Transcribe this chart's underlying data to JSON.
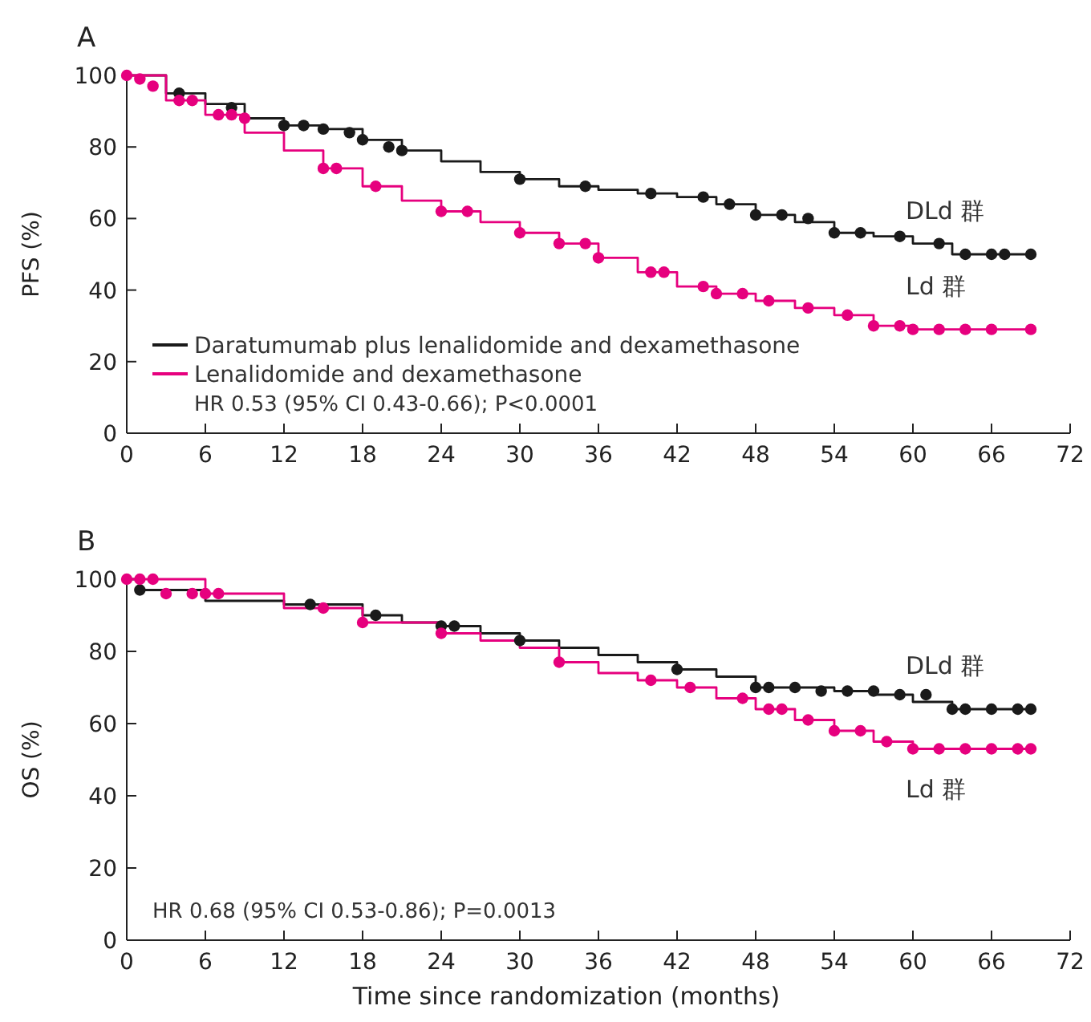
{
  "chart_data": [
    {
      "type": "step",
      "title": "A",
      "ylabel": "PFS (%)",
      "xlim": [
        0,
        72
      ],
      "xticks": [
        0,
        6,
        12,
        18,
        24,
        30,
        36,
        42,
        48,
        54,
        60,
        66,
        72
      ],
      "ylim": [
        0,
        100
      ],
      "yticks": [
        0,
        20,
        40,
        60,
        80,
        100
      ],
      "grid": false,
      "legend": "bottom left",
      "series": [
        {
          "name": "Daratumumab plus lenalidomide and dexamethasone",
          "color": "#1a1a1a",
          "x": [
            0,
            3,
            6,
            9,
            12,
            15,
            18,
            21,
            24,
            27,
            30,
            33,
            36,
            39,
            42,
            45,
            48,
            51,
            54,
            57,
            60,
            63,
            69
          ],
          "values": [
            100,
            95,
            92,
            88,
            86,
            85,
            82,
            79,
            76,
            73,
            71,
            69,
            68,
            67,
            66,
            64,
            61,
            59,
            56,
            55,
            53,
            50,
            50
          ]
        },
        {
          "name": "Lenalidomide and dexamethasone",
          "color": "#e6007e",
          "x": [
            0,
            3,
            6,
            9,
            12,
            15,
            18,
            21,
            24,
            27,
            30,
            33,
            36,
            39,
            42,
            45,
            48,
            51,
            54,
            57,
            60,
            69
          ],
          "values": [
            100,
            93,
            89,
            84,
            79,
            74,
            69,
            65,
            62,
            59,
            56,
            53,
            49,
            45,
            41,
            39,
            37,
            35,
            33,
            30,
            29,
            29
          ]
        },
        {
          "type": "scatter",
          "marker": "circle",
          "color": "#1a1a1a",
          "x": [
            4,
            8,
            12,
            13.5,
            15,
            17,
            18,
            20,
            21,
            30,
            35,
            40,
            44,
            46,
            48,
            50,
            52,
            54,
            56,
            59,
            62,
            64,
            66,
            67,
            69
          ],
          "values": [
            95,
            91,
            86,
            86,
            85,
            84,
            82,
            80,
            79,
            71,
            69,
            67,
            66,
            64,
            61,
            61,
            60,
            56,
            56,
            55,
            53,
            50,
            50,
            50,
            50
          ]
        },
        {
          "type": "scatter",
          "marker": "circle",
          "color": "#e6007e",
          "x": [
            0,
            1,
            2,
            4,
            5,
            7,
            8,
            9,
            15,
            16,
            19,
            24,
            26,
            30,
            33,
            35,
            36,
            40,
            41,
            44,
            45,
            47,
            49,
            52,
            55,
            57,
            59,
            60,
            62,
            64,
            66,
            69
          ],
          "values": [
            100,
            99,
            97,
            93,
            93,
            89,
            89,
            88,
            74,
            74,
            69,
            62,
            62,
            56,
            53,
            53,
            49,
            45,
            45,
            41,
            39,
            39,
            37,
            35,
            33,
            30,
            30,
            29,
            29,
            29,
            29,
            29
          ]
        }
      ],
      "annotations": [
        "DLd 群",
        "Ld 群",
        "HR 0.53 (95% CI 0.43-0.66); P<0.0001"
      ]
    },
    {
      "type": "step",
      "title": "B",
      "ylabel": "OS (%)",
      "xlabel": "Time since randomization (months)",
      "xlim": [
        0,
        72
      ],
      "xticks": [
        0,
        6,
        12,
        18,
        24,
        30,
        36,
        42,
        48,
        54,
        60,
        66,
        72
      ],
      "ylim": [
        0,
        100
      ],
      "yticks": [
        0,
        20,
        40,
        60,
        80,
        100
      ],
      "grid": false,
      "legend": false,
      "series": [
        {
          "color": "#1a1a1a",
          "x": [
            0,
            1,
            6,
            12,
            18,
            21,
            24,
            27,
            30,
            33,
            36,
            39,
            42,
            45,
            48,
            54,
            57,
            60,
            63,
            69
          ],
          "values": [
            100,
            97,
            94,
            93,
            90,
            88,
            87,
            85,
            83,
            81,
            79,
            77,
            75,
            73,
            70,
            69,
            68,
            66,
            64,
            64
          ]
        },
        {
          "color": "#e6007e",
          "x": [
            0,
            6,
            12,
            18,
            24,
            27,
            30,
            33,
            36,
            39,
            42,
            45,
            48,
            51,
            54,
            57,
            60,
            69
          ],
          "values": [
            100,
            96,
            92,
            88,
            85,
            83,
            81,
            77,
            74,
            72,
            70,
            67,
            64,
            61,
            58,
            55,
            53,
            53
          ]
        },
        {
          "type": "scatter",
          "marker": "circle",
          "color": "#1a1a1a",
          "x": [
            1,
            14,
            19,
            24,
            25,
            30,
            42,
            48,
            49,
            51,
            53,
            55,
            57,
            59,
            61,
            63,
            64,
            66,
            68,
            69
          ],
          "values": [
            97,
            93,
            90,
            87,
            87,
            83,
            75,
            70,
            70,
            70,
            69,
            69,
            69,
            68,
            68,
            64,
            64,
            64,
            64,
            64
          ]
        },
        {
          "type": "scatter",
          "marker": "circle",
          "color": "#e6007e",
          "x": [
            0,
            1,
            2,
            3,
            5,
            6,
            7,
            15,
            18,
            24,
            33,
            40,
            43,
            47,
            49,
            50,
            52,
            54,
            56,
            58,
            60,
            62,
            64,
            66,
            68,
            69
          ],
          "values": [
            100,
            100,
            100,
            96,
            96,
            96,
            96,
            92,
            88,
            85,
            77,
            72,
            70,
            67,
            64,
            64,
            61,
            58,
            58,
            55,
            53,
            53,
            53,
            53,
            53,
            53
          ]
        }
      ],
      "annotations": [
        "DLd 群",
        "Ld 群",
        "HR 0.68 (95% CI 0.53-0.86); P=0.0013"
      ]
    }
  ]
}
